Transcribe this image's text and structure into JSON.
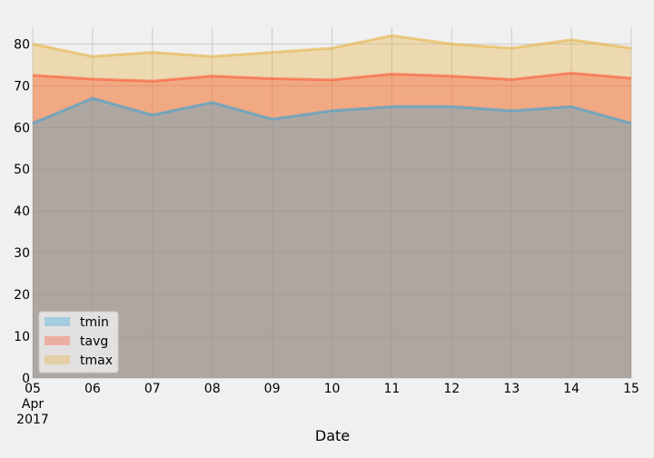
{
  "colors": {
    "figure_background": "#f0f0f0",
    "grid": "#cbcbcb",
    "legend_background": "#f0f0f0",
    "legend_border": "#cccccc"
  },
  "chart_data": {
    "type": "area",
    "stacked": false,
    "alpha": 0.35,
    "title": "",
    "xlabel": "Date",
    "ylabel": "",
    "x": [
      "2017-04-05",
      "2017-04-06",
      "2017-04-07",
      "2017-04-08",
      "2017-04-09",
      "2017-04-10",
      "2017-04-11",
      "2017-04-12",
      "2017-04-13",
      "2017-04-14",
      "2017-04-15"
    ],
    "x_tick_labels": [
      "05\nApr\n2017",
      "06",
      "07",
      "08",
      "09",
      "10",
      "11",
      "12",
      "13",
      "14",
      "15"
    ],
    "ylim": [
      0,
      84
    ],
    "y_ticks": [
      0,
      10,
      20,
      30,
      40,
      50,
      60,
      70,
      80
    ],
    "grid": true,
    "legend_position": "lower-left",
    "series": [
      {
        "name": "tmin",
        "color": "#30a2da",
        "values": [
          61,
          67,
          63,
          66,
          62,
          64,
          65,
          65,
          64,
          65,
          61
        ]
      },
      {
        "name": "tavg",
        "color": "#fc4f30",
        "values": [
          72.5,
          71.6,
          71.1,
          72.3,
          71.7,
          71.4,
          72.8,
          72.3,
          71.5,
          73.0,
          71.8
        ]
      },
      {
        "name": "tmax",
        "color": "#e5ae38",
        "values": [
          80,
          77,
          78,
          77,
          78,
          79,
          82,
          80,
          79,
          81,
          79
        ]
      }
    ]
  }
}
